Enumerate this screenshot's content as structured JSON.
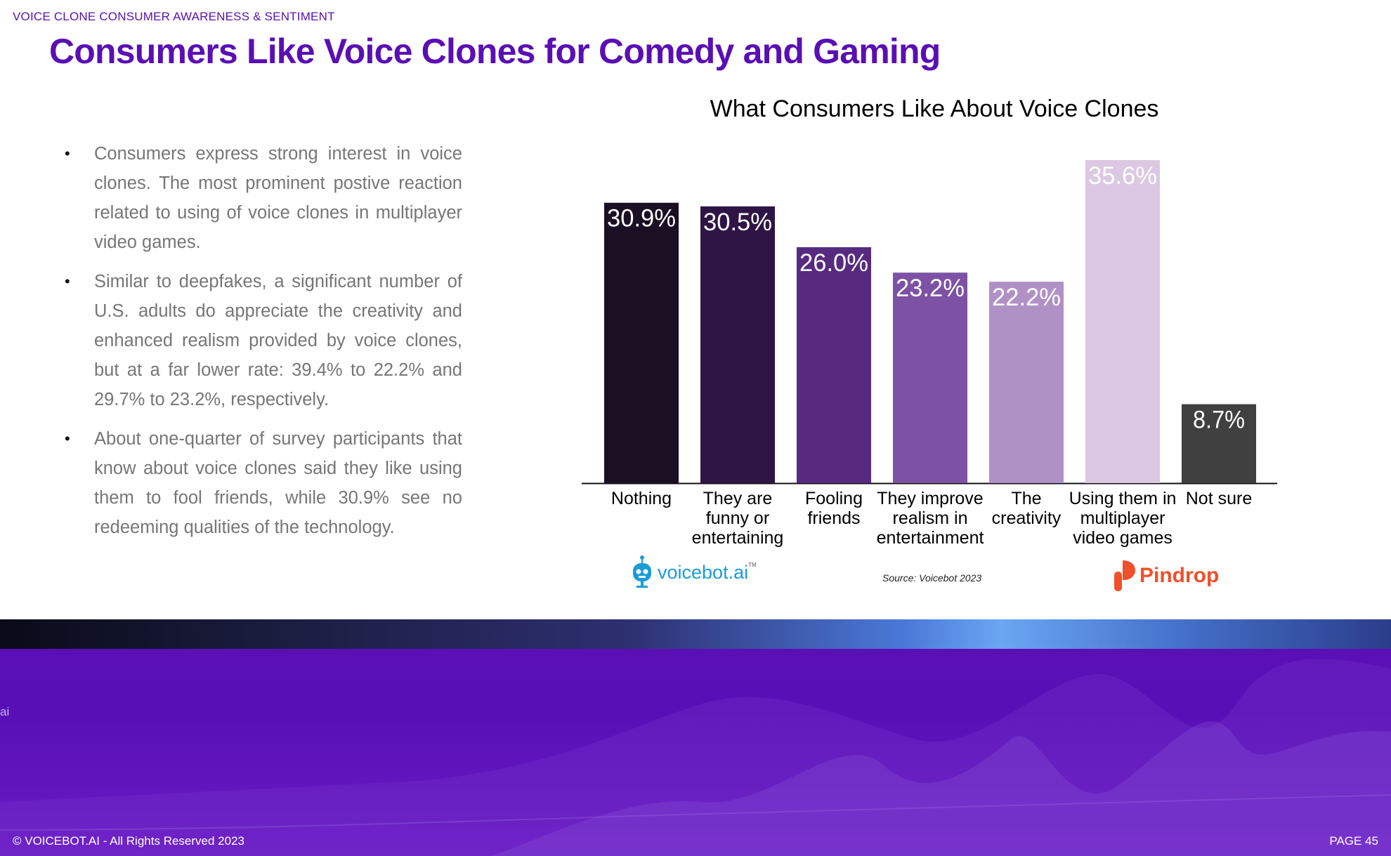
{
  "header": {
    "section_label": "VOICE CLONE CONSUMER AWARENESS & SENTIMENT",
    "title": "Consumers Like Voice Clones for Comedy and Gaming"
  },
  "bullets": [
    "Consumers express strong interest in voice clones. The most prominent postive reaction related to using of voice clones in multiplayer video games.",
    "Similar to deepfakes, a significant number of U.S. adults do appreciate the creativity and enhanced realism provided by voice clones, but at a far lower rate: 39.4% to 22.2% and 29.7% to 23.2%, respectively.",
    "About one-quarter of survey participants that know about voice clones said they like using them to fool friends, while 30.9% see no redeeming qualities of the technology."
  ],
  "chart_data": {
    "type": "bar",
    "title": "What Consumers Like About Voice Clones",
    "categories": [
      [
        "Nothing"
      ],
      [
        "They are",
        "funny or",
        "entertaining"
      ],
      [
        "Fooling",
        "friends"
      ],
      [
        "They improve",
        "realism in",
        "entertainment"
      ],
      [
        "The",
        "creativity"
      ],
      [
        "Using them in",
        "multiplayer",
        "video games"
      ],
      [
        "Not sure"
      ]
    ],
    "values": [
      30.9,
      30.5,
      26.0,
      23.2,
      22.2,
      35.6,
      8.7
    ],
    "value_labels": [
      "30.9%",
      "30.5%",
      "26.0%",
      "23.2%",
      "22.2%",
      "35.6%",
      "8.7%"
    ],
    "colors": [
      "#1b0f24",
      "#2f1545",
      "#572a80",
      "#7d52a4",
      "#b091c5",
      "#dcc8e2",
      "#404040"
    ],
    "unit": "%",
    "xlabel": "",
    "ylabel": "",
    "grid": false,
    "legend": "none"
  },
  "logos": {
    "voicebot_text": "voicebot",
    "voicebot_suffix": ".ai",
    "voicebot_tm": "TM",
    "pindrop_text": "Pindrop"
  },
  "source": "Source: Voicebot 2023",
  "footer": {
    "copyright": "© VOICEBOT.AI - All Rights Reserved 2023",
    "page": "PAGE 45",
    "side_mark": "ai"
  },
  "theme": {
    "accent": "#5a0fb4",
    "voicebot_blue": "#1a9cd8",
    "pindrop_orange": "#f0502a"
  }
}
